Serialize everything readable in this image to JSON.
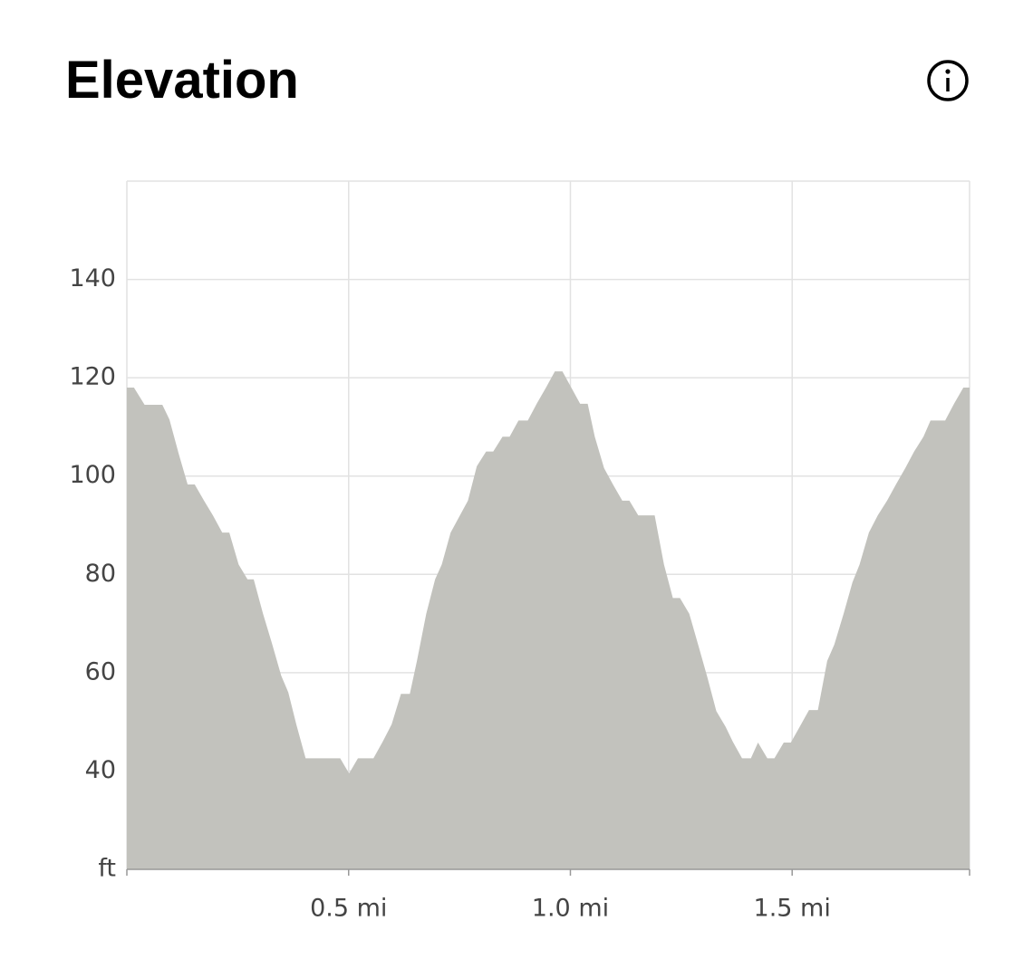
{
  "chart_data": {
    "type": "area",
    "title": "Elevation",
    "x": [
      0,
      0.016,
      0.04,
      0.08,
      0.096,
      0.117,
      0.137,
      0.153,
      0.174,
      0.194,
      0.215,
      0.231,
      0.252,
      0.272,
      0.286,
      0.307,
      0.327,
      0.348,
      0.364,
      0.382,
      0.403,
      0.481,
      0.501,
      0.521,
      0.556,
      0.577,
      0.597,
      0.618,
      0.638,
      0.654,
      0.675,
      0.695,
      0.71,
      0.73,
      0.751,
      0.769,
      0.789,
      0.81,
      0.826,
      0.847,
      0.863,
      0.883,
      0.904,
      0.924,
      0.945,
      0.965,
      0.982,
      1.002,
      1.022,
      1.039,
      1.055,
      1.076,
      1.096,
      1.117,
      1.133,
      1.153,
      1.19,
      1.211,
      1.231,
      1.247,
      1.268,
      1.288,
      1.309,
      1.329,
      1.35,
      1.366,
      1.387,
      1.407,
      1.423,
      1.444,
      1.46,
      1.481,
      1.497,
      1.517,
      1.538,
      1.558,
      1.579,
      1.595,
      1.616,
      1.636,
      1.652,
      1.673,
      1.693,
      1.714,
      1.734,
      1.755,
      1.775,
      1.796,
      1.812,
      1.845,
      1.865,
      1.886,
      1.9
    ],
    "values": [
      118,
      118,
      114.5,
      114.5,
      111.5,
      104.5,
      98.3,
      98.3,
      95,
      92,
      88.5,
      88.5,
      82,
      79,
      79,
      72,
      66,
      59.4,
      56,
      49.5,
      42.6,
      42.6,
      39.5,
      42.6,
      42.6,
      46,
      49.5,
      55.7,
      55.7,
      62.4,
      72,
      79,
      82,
      88.5,
      92,
      95,
      102,
      105,
      105,
      108,
      108,
      111.3,
      111.3,
      114.7,
      118,
      121.3,
      121.3,
      118,
      114.7,
      114.7,
      108,
      101.6,
      98.3,
      95,
      95,
      92,
      92,
      82,
      75.2,
      75.2,
      72,
      65.7,
      59,
      52.2,
      49,
      46,
      42.6,
      42.6,
      45.8,
      42.6,
      42.6,
      45.8,
      45.8,
      49,
      52.4,
      52.4,
      62.4,
      65.7,
      72,
      78.4,
      82,
      88.5,
      92,
      95,
      98.3,
      101.6,
      105,
      108,
      111.3,
      111.3,
      114.7,
      118,
      118
    ],
    "color": "#c2c2bd",
    "xlim": [
      0,
      1.9
    ],
    "xticks": [
      {
        "value": 0.5,
        "label": "0.5 mi"
      },
      {
        "value": 1,
        "label": "1.0 mi"
      },
      {
        "value": 1.5,
        "label": "1.5 mi"
      }
    ],
    "ylim": [
      20,
      160
    ],
    "yticks": [
      {
        "value": 20,
        "label": "ft"
      },
      40,
      60,
      80,
      100,
      120,
      140
    ],
    "grid": true
  }
}
